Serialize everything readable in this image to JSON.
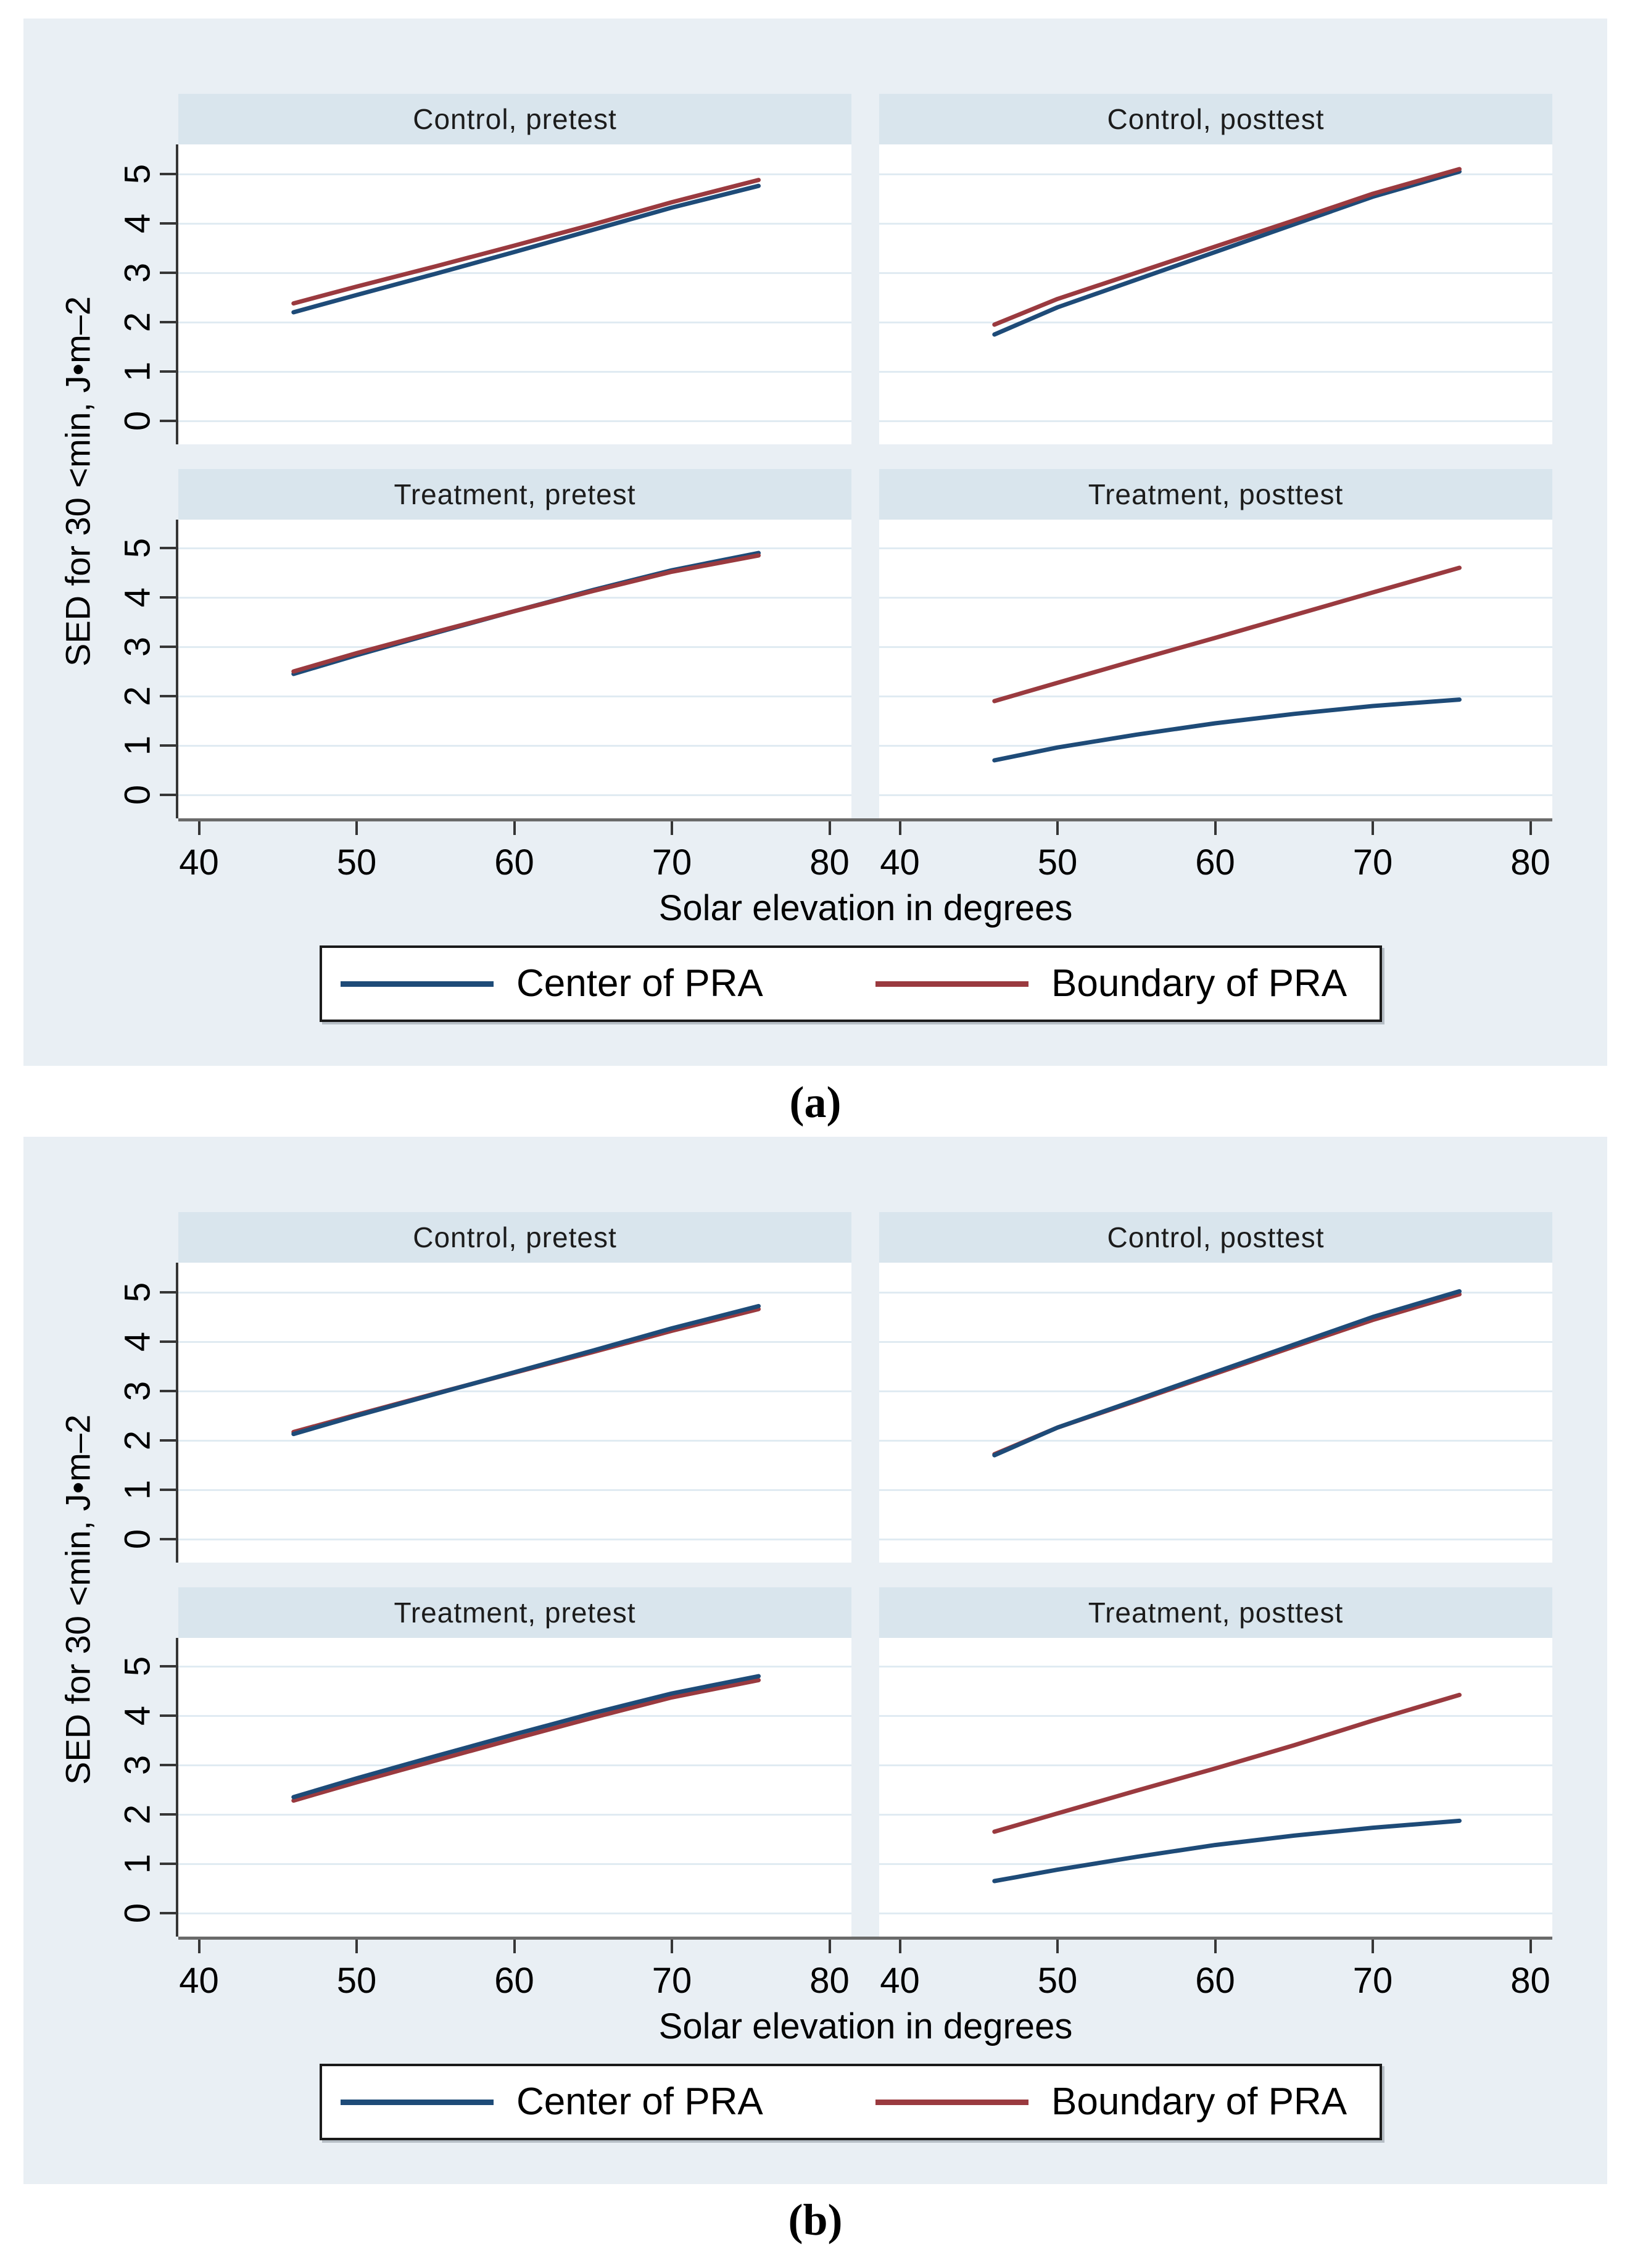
{
  "page": {
    "background": "#ffffff"
  },
  "colors": {
    "figure_bg": "#e9eff4",
    "band_bg": "#d9e5ed",
    "plot_bg": "#ffffff",
    "grid": "#e0ebf2",
    "axis": "#6a6a6a",
    "tick": "#363636",
    "text": "#000000",
    "legend_border": "#1a1a1a",
    "navy": "#1e4b78",
    "maroon": "#9a3a3f"
  },
  "chart_data": [
    {
      "type": "line",
      "caption": "(a)",
      "xlabel": "Solar elevation in degrees",
      "ylabel": "SED for 30 <min, J•m–2",
      "x_ticks": [
        40,
        50,
        60,
        70,
        80
      ],
      "y_ticks": [
        0,
        1,
        2,
        3,
        4,
        5
      ],
      "xlim": [
        38.7,
        81.5
      ],
      "ylim": [
        -0.5,
        5.6
      ],
      "grid": "on",
      "legend_position": "bottom",
      "x": [
        46,
        50,
        55,
        60,
        65,
        70,
        75.5
      ],
      "legend": [
        {
          "label": "Center of PRA",
          "color": "#1e4b78"
        },
        {
          "label": "Boundary of PRA",
          "color": "#9a3a3f"
        }
      ],
      "panels": [
        {
          "title": "Control, pretest",
          "row": 0,
          "col": 0,
          "series": [
            {
              "name": "Center of PRA",
              "color": "#1e4b78",
              "y": [
                2.2,
                2.55,
                2.98,
                3.42,
                3.87,
                4.32,
                4.76
              ]
            },
            {
              "name": "Boundary of PRA",
              "color": "#9a3a3f",
              "y": [
                2.38,
                2.72,
                3.13,
                3.55,
                3.98,
                4.43,
                4.88
              ]
            }
          ]
        },
        {
          "title": "Control, posttest",
          "row": 0,
          "col": 1,
          "series": [
            {
              "name": "Center of PRA",
              "color": "#1e4b78",
              "y": [
                1.75,
                2.3,
                2.86,
                3.42,
                3.98,
                4.54,
                5.05
              ]
            },
            {
              "name": "Boundary of PRA",
              "color": "#9a3a3f",
              "y": [
                1.95,
                2.47,
                3.0,
                3.53,
                4.06,
                4.6,
                5.1
              ]
            }
          ]
        },
        {
          "title": "Treatment, pretest",
          "row": 1,
          "col": 0,
          "series": [
            {
              "name": "Center of PRA",
              "color": "#1e4b78",
              "y": [
                2.45,
                2.83,
                3.28,
                3.72,
                4.15,
                4.55,
                4.9
              ]
            },
            {
              "name": "Boundary of PRA",
              "color": "#9a3a3f",
              "y": [
                2.5,
                2.87,
                3.3,
                3.72,
                4.13,
                4.52,
                4.85
              ]
            }
          ]
        },
        {
          "title": "Treatment, posttest",
          "row": 1,
          "col": 1,
          "series": [
            {
              "name": "Center of PRA",
              "color": "#1e4b78",
              "y": [
                0.7,
                0.96,
                1.22,
                1.45,
                1.64,
                1.8,
                1.93
              ]
            },
            {
              "name": "Boundary of PRA",
              "color": "#9a3a3f",
              "y": [
                1.9,
                2.27,
                2.73,
                3.18,
                3.64,
                4.1,
                4.6
              ]
            }
          ]
        }
      ]
    },
    {
      "type": "line",
      "caption": "(b)",
      "xlabel": "Solar elevation in degrees",
      "ylabel": "SED for 30 <min, J•m–2",
      "x_ticks": [
        40,
        50,
        60,
        70,
        80
      ],
      "y_ticks": [
        0,
        1,
        2,
        3,
        4,
        5
      ],
      "xlim": [
        38.7,
        81.5
      ],
      "ylim": [
        -0.5,
        5.6
      ],
      "grid": "on",
      "legend_position": "bottom",
      "x": [
        46,
        50,
        55,
        60,
        65,
        70,
        75.5
      ],
      "legend": [
        {
          "label": "Center of PRA",
          "color": "#1e4b78"
        },
        {
          "label": "Boundary of PRA",
          "color": "#9a3a3f"
        }
      ],
      "panels": [
        {
          "title": "Control, pretest",
          "row": 0,
          "col": 0,
          "series": [
            {
              "name": "Boundary of PRA",
              "color": "#9a3a3f",
              "y": [
                2.17,
                2.52,
                2.95,
                3.37,
                3.79,
                4.22,
                4.66
              ]
            },
            {
              "name": "Center of PRA",
              "color": "#1e4b78",
              "y": [
                2.13,
                2.5,
                2.94,
                3.38,
                3.82,
                4.27,
                4.72
              ]
            }
          ]
        },
        {
          "title": "Control, posttest",
          "row": 0,
          "col": 1,
          "series": [
            {
              "name": "Boundary of PRA",
              "color": "#9a3a3f",
              "y": [
                1.72,
                2.26,
                2.8,
                3.35,
                3.9,
                4.44,
                4.96
              ]
            },
            {
              "name": "Center of PRA",
              "color": "#1e4b78",
              "y": [
                1.7,
                2.26,
                2.82,
                3.38,
                3.94,
                4.5,
                5.02
              ]
            }
          ]
        },
        {
          "title": "Treatment, pretest",
          "row": 1,
          "col": 0,
          "series": [
            {
              "name": "Boundary of PRA",
              "color": "#9a3a3f",
              "y": [
                2.28,
                2.65,
                3.09,
                3.53,
                3.96,
                4.37,
                4.72
              ]
            },
            {
              "name": "Center of PRA",
              "color": "#1e4b78",
              "y": [
                2.35,
                2.73,
                3.18,
                3.62,
                4.05,
                4.45,
                4.8
              ]
            }
          ]
        },
        {
          "title": "Treatment, posttest",
          "row": 1,
          "col": 1,
          "series": [
            {
              "name": "Boundary of PRA",
              "color": "#9a3a3f",
              "y": [
                1.65,
                2.02,
                2.48,
                2.93,
                3.4,
                3.9,
                4.42
              ]
            },
            {
              "name": "Center of PRA",
              "color": "#1e4b78",
              "y": [
                0.65,
                0.88,
                1.14,
                1.38,
                1.57,
                1.73,
                1.87
              ]
            }
          ]
        }
      ]
    }
  ]
}
